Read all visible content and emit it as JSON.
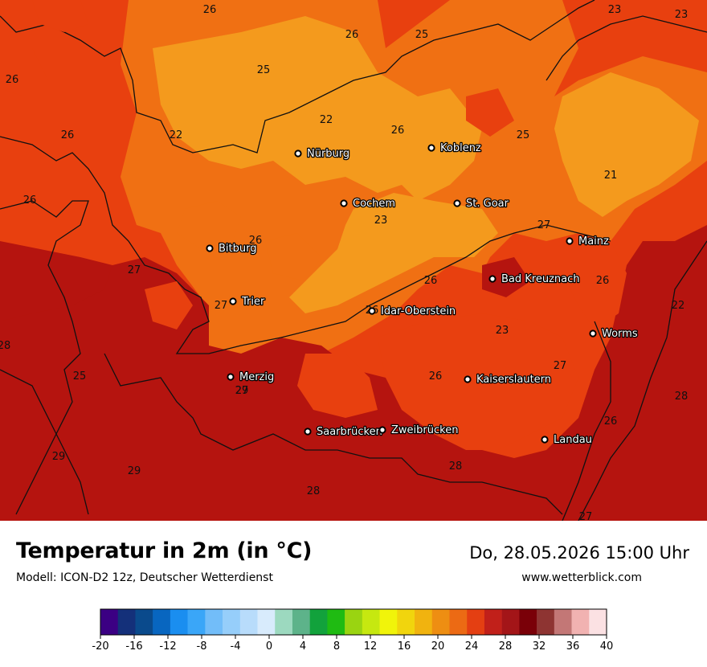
{
  "map": {
    "cities": [
      {
        "name": "Nürburg"
      },
      {
        "name": "Koblenz"
      },
      {
        "name": "Cochem"
      },
      {
        "name": "St. Goar"
      },
      {
        "name": "Bitburg"
      },
      {
        "name": "Mainz"
      },
      {
        "name": "Bad Kreuznach"
      },
      {
        "name": "Trier"
      },
      {
        "name": "Idar-Oberstein"
      },
      {
        "name": "Worms"
      },
      {
        "name": "Merzig"
      },
      {
        "name": "Kaiserslautern"
      },
      {
        "name": "Saarbrücken"
      },
      {
        "name": "Zweibrücken"
      },
      {
        "name": "Landau"
      }
    ],
    "value_labels": [
      "26",
      "26",
      "25",
      "23",
      "23",
      "26",
      "25",
      "22",
      "26",
      "22",
      "26",
      "25",
      "26",
      "21",
      "26",
      "23",
      "27",
      "27",
      "27",
      "26",
      "26",
      "22",
      "27",
      "26",
      "28",
      "23",
      "26",
      "27",
      "28",
      "25",
      "29",
      "26",
      "29",
      "29",
      "28",
      "28",
      "27"
    ],
    "colors": {
      "deep_red": "#b5140f",
      "red": "#e8400f",
      "orange": "#f07013",
      "light_orange": "#f49a1d",
      "border": "#111111"
    }
  },
  "footer": {
    "title": "Temperatur in 2m (in °C)",
    "subtitle": "Modell: ICON-D2 12z, Deutscher Wetterdienst",
    "datetime": "Do, 28.05.2026 15:00 Uhr",
    "website": "www.wetterblick.com"
  },
  "legend": {
    "colors": [
      "#3b0083",
      "#14307a",
      "#0a4a8c",
      "#0866c0",
      "#1a8ef0",
      "#3aa6f8",
      "#72bdf9",
      "#96cefa",
      "#b8dcfb",
      "#d8ebfc",
      "#9cd9bf",
      "#5db38a",
      "#12a23c",
      "#1fbb12",
      "#9ad411",
      "#c6e810",
      "#f1f40a",
      "#f1d50d",
      "#f1b30f",
      "#ee8e12",
      "#ec6a14",
      "#e43f12",
      "#c1201a",
      "#a31518",
      "#7a0008",
      "#8e3432",
      "#c37776",
      "#f1b2b1",
      "#fbe1e3"
    ],
    "ticks": [
      "-20",
      "-16",
      "-12",
      "-8",
      "-4",
      "0",
      "4",
      "8",
      "12",
      "16",
      "20",
      "24",
      "28",
      "32",
      "36",
      "40"
    ]
  }
}
